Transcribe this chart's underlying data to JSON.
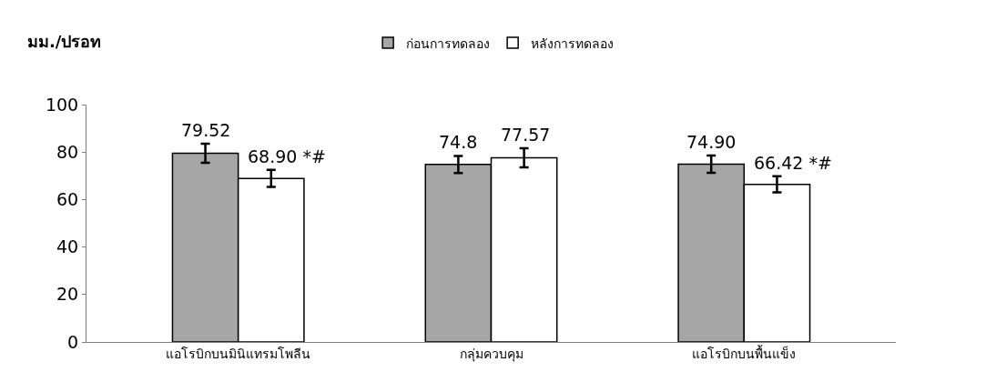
{
  "chart_data": {
    "type": "bar",
    "ylabel": "มม./ปรอท",
    "categories": [
      "แอโรบิกบนมินิแทรมโพลีน",
      "กลุ่มควบคุม",
      "แอโรบิกบนพื้นแข็ง"
    ],
    "series": [
      {
        "name": "ก่อนการทดลอง",
        "color": "#a6a6a6",
        "values": [
          79.52,
          74.8,
          74.9
        ],
        "errors": [
          4,
          3.6,
          3.6
        ],
        "value_labels": [
          "79.52",
          "74.8",
          "74.90"
        ]
      },
      {
        "name": "หลังการทดลอง",
        "color": "#ffffff",
        "values": [
          68.9,
          77.57,
          66.42
        ],
        "errors": [
          3.6,
          4,
          3.4
        ],
        "value_labels": [
          "68.90 *#",
          "77.57",
          "66.42 *#"
        ]
      }
    ],
    "ylim": [
      0,
      100
    ],
    "yticks": [
      0,
      20,
      40,
      60,
      80,
      100
    ],
    "legend": "top"
  }
}
